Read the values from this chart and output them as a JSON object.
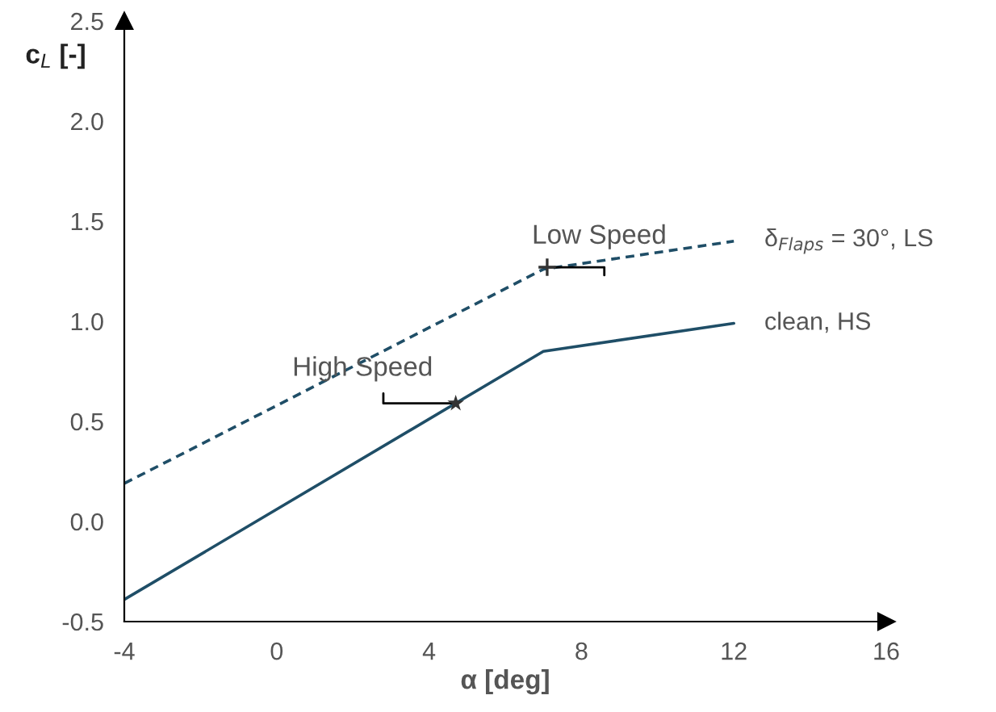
{
  "chart_data": {
    "type": "line",
    "xlabel": "α [deg]",
    "ylabel": "c$_{L}$ [-]",
    "xlim": [
      -4,
      16
    ],
    "ylim": [
      -0.5,
      2.5
    ],
    "xticks": [
      -4,
      0,
      4,
      8,
      12,
      16
    ],
    "yticks": [
      -0.5,
      {
        "value": 0,
        "label": "0.0"
      },
      0.5,
      {
        "value": 1,
        "label": "1.0"
      },
      1.5,
      {
        "value": 2,
        "label": "2.0"
      },
      2.5
    ],
    "grid": false,
    "legend": false,
    "series": [
      {
        "name": "δ$_{Flaps}$ = 30°, LS",
        "color": "#1f4e67",
        "line_style": "dashed",
        "x": [
          -4,
          7,
          12
        ],
        "values": [
          0.19,
          1.26,
          1.4
        ]
      },
      {
        "name": "clean, HS",
        "color": "#1f4e67",
        "line_style": "solid",
        "x": [
          -4,
          7,
          12
        ],
        "values": [
          -0.39,
          0.85,
          0.99
        ]
      },
      {
        "type": "scatter",
        "color": "#333333",
        "marker": "cross",
        "x": [
          7.1
        ],
        "values": [
          1.27
        ]
      },
      {
        "type": "scatter",
        "color": "#333333",
        "marker": "star",
        "x": [
          4.7
        ],
        "values": [
          0.59
        ]
      }
    ],
    "annotations": [
      {
        "text": "Low Speed",
        "x": 7.1,
        "y": 1.27
      },
      {
        "text": "High Speed",
        "x": 4.7,
        "y": 0.59
      }
    ]
  }
}
